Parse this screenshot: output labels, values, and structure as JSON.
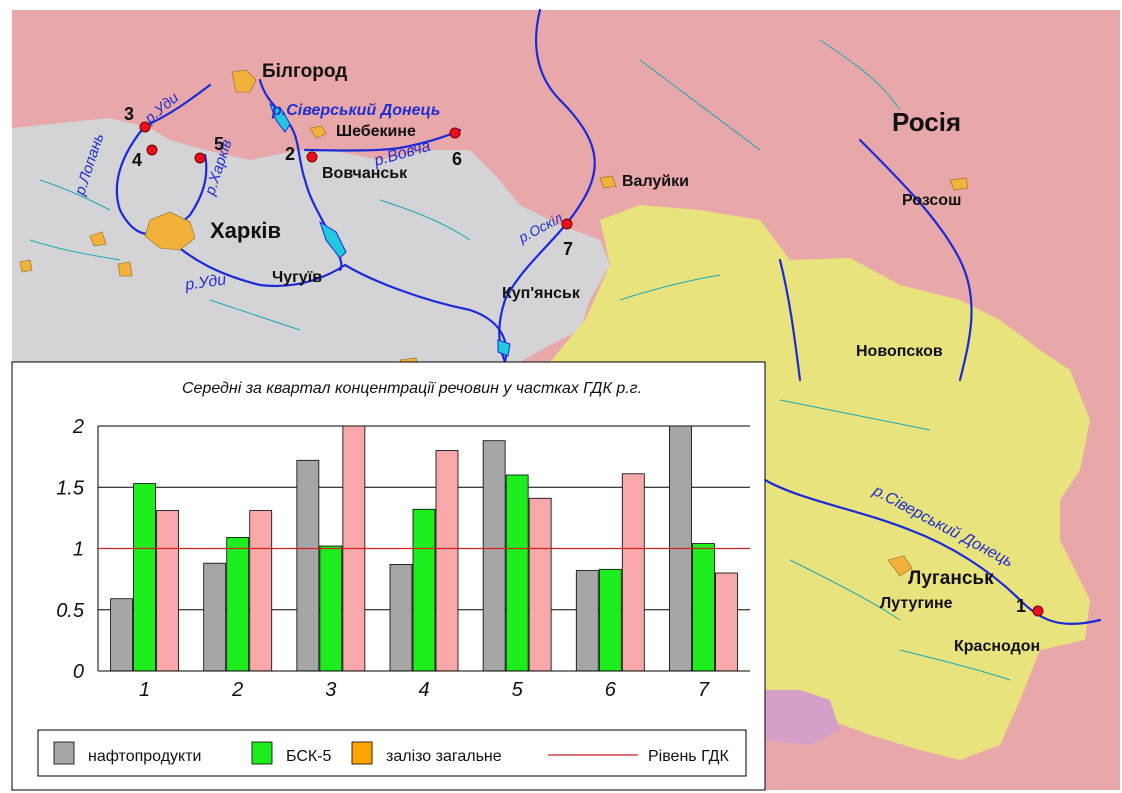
{
  "map": {
    "colors": {
      "russia": "#e8a7a8",
      "kharkiv_region": "#d4d4d6",
      "luhansk_region": "#e9e37e",
      "other_region": "#d4a0c8",
      "water": "#1a2ad8",
      "tributary": "#1aa9b4",
      "city": "#f2b13a",
      "station": "#e8101a"
    },
    "country_label": "Росія",
    "cities": {
      "bilhorod": "Білгород",
      "shebekyne": "Шебекине",
      "vovchansk": "Вовчанськ",
      "valuiky": "Валуйки",
      "kharkiv": "Харків",
      "chuhuiv": "Чугуїв",
      "kupiansk": "Куп'янськ",
      "rozsosh": "Розсош",
      "novopskov": "Новопсков",
      "luhansk": "Луганськ",
      "lutuhyne": "Лутугине",
      "krasnodon": "Краснодон"
    },
    "rivers": {
      "sd_top": "р.Сіверський Донець",
      "vovcha": "р.Вовча",
      "udy_top": "р.Уди",
      "lopan": "р.Лопань",
      "kharkiv": "р.Харків",
      "udy_bottom": "р.Уди",
      "oskil": "р.Оскіл",
      "sd_bottom": "р.Сіверський Донець"
    },
    "stations": [
      "1",
      "2",
      "3",
      "4",
      "5",
      "6",
      "7"
    ]
  },
  "chart_data": {
    "type": "bar",
    "title": "Середні за квартал концентрації речовин у частках ГДК р.г.",
    "categories": [
      "1",
      "2",
      "3",
      "4",
      "5",
      "6",
      "7"
    ],
    "series": [
      {
        "name": "нафтопродукти",
        "color": "#a6a6a6",
        "values": [
          0.59,
          0.88,
          1.72,
          0.87,
          1.88,
          0.82,
          2.0
        ]
      },
      {
        "name": "БСК-5",
        "color": "#1eee1e",
        "values": [
          1.53,
          1.09,
          1.02,
          1.32,
          1.6,
          0.83,
          1.04
        ]
      },
      {
        "name": "залізо загальне",
        "color": "#f8a8a8",
        "legend_color": "#ffa500",
        "values": [
          1.31,
          1.31,
          2.0,
          1.8,
          1.41,
          1.61,
          0.8
        ]
      }
    ],
    "reference_line": {
      "name": "Рівень ГДК",
      "value": 1.0,
      "color": "#d42020"
    },
    "ylim": [
      0,
      2
    ],
    "yticks": [
      "0",
      "0.5",
      "1",
      "1.5",
      "2"
    ],
    "grid": true,
    "legend_position": "bottom"
  }
}
